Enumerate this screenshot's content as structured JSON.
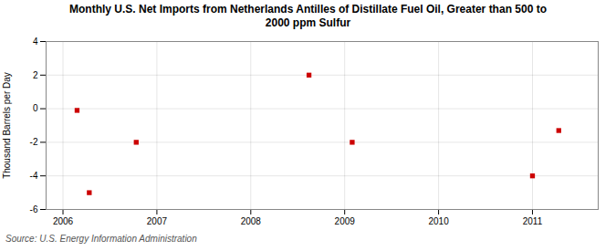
{
  "chart_data": {
    "type": "scatter",
    "title": "Monthly U.S. Net Imports from Netherlands Antilles of Distillate Fuel Oil, Greater than 500 to\n2000 ppm Sulfur",
    "ylabel": "Thousand Barrels per Day",
    "source": "Source: U.S. Energy Information Administration",
    "x": [
      2006.15,
      2006.28,
      2006.78,
      2008.62,
      2009.08,
      2011.0,
      2011.28
    ],
    "values": [
      -0.1,
      -5.0,
      -2.0,
      2.0,
      -2.0,
      -4.0,
      -1.3
    ],
    "color": "#cc0000",
    "marker": "square",
    "xlim": [
      2005.82,
      2011.7
    ],
    "xticks": [
      2006,
      2007,
      2008,
      2009,
      2010,
      2011
    ],
    "ylim": [
      -6,
      4
    ],
    "yticks": [
      -6,
      -4,
      -2,
      0,
      2,
      4
    ],
    "grid": true
  }
}
